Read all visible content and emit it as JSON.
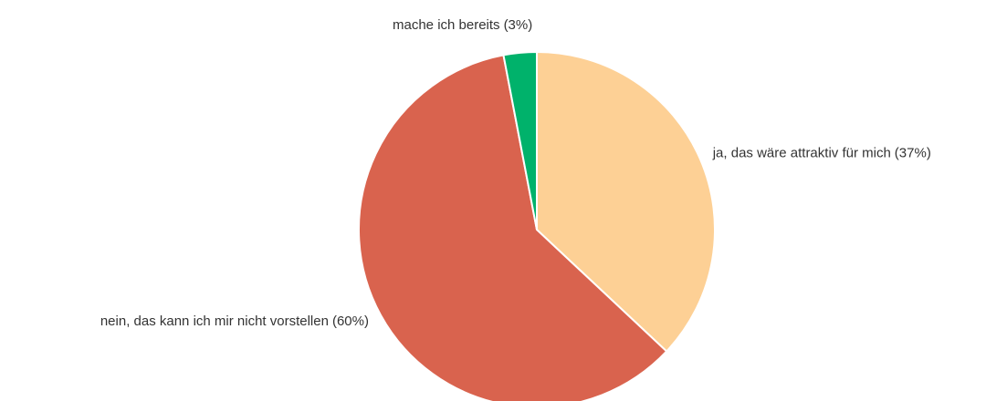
{
  "chart_data": {
    "type": "pie",
    "categories": [
      "ja, das wäre attraktiv für mich",
      "nein, das kann ich mir nicht vorstellen",
      "mache ich bereits"
    ],
    "values": [
      37,
      60,
      3
    ],
    "value_labels": [
      "(37%)",
      "(60%)",
      "(3%)"
    ],
    "colors": [
      "#fdd095",
      "#d9634e",
      "#00b26b"
    ]
  }
}
